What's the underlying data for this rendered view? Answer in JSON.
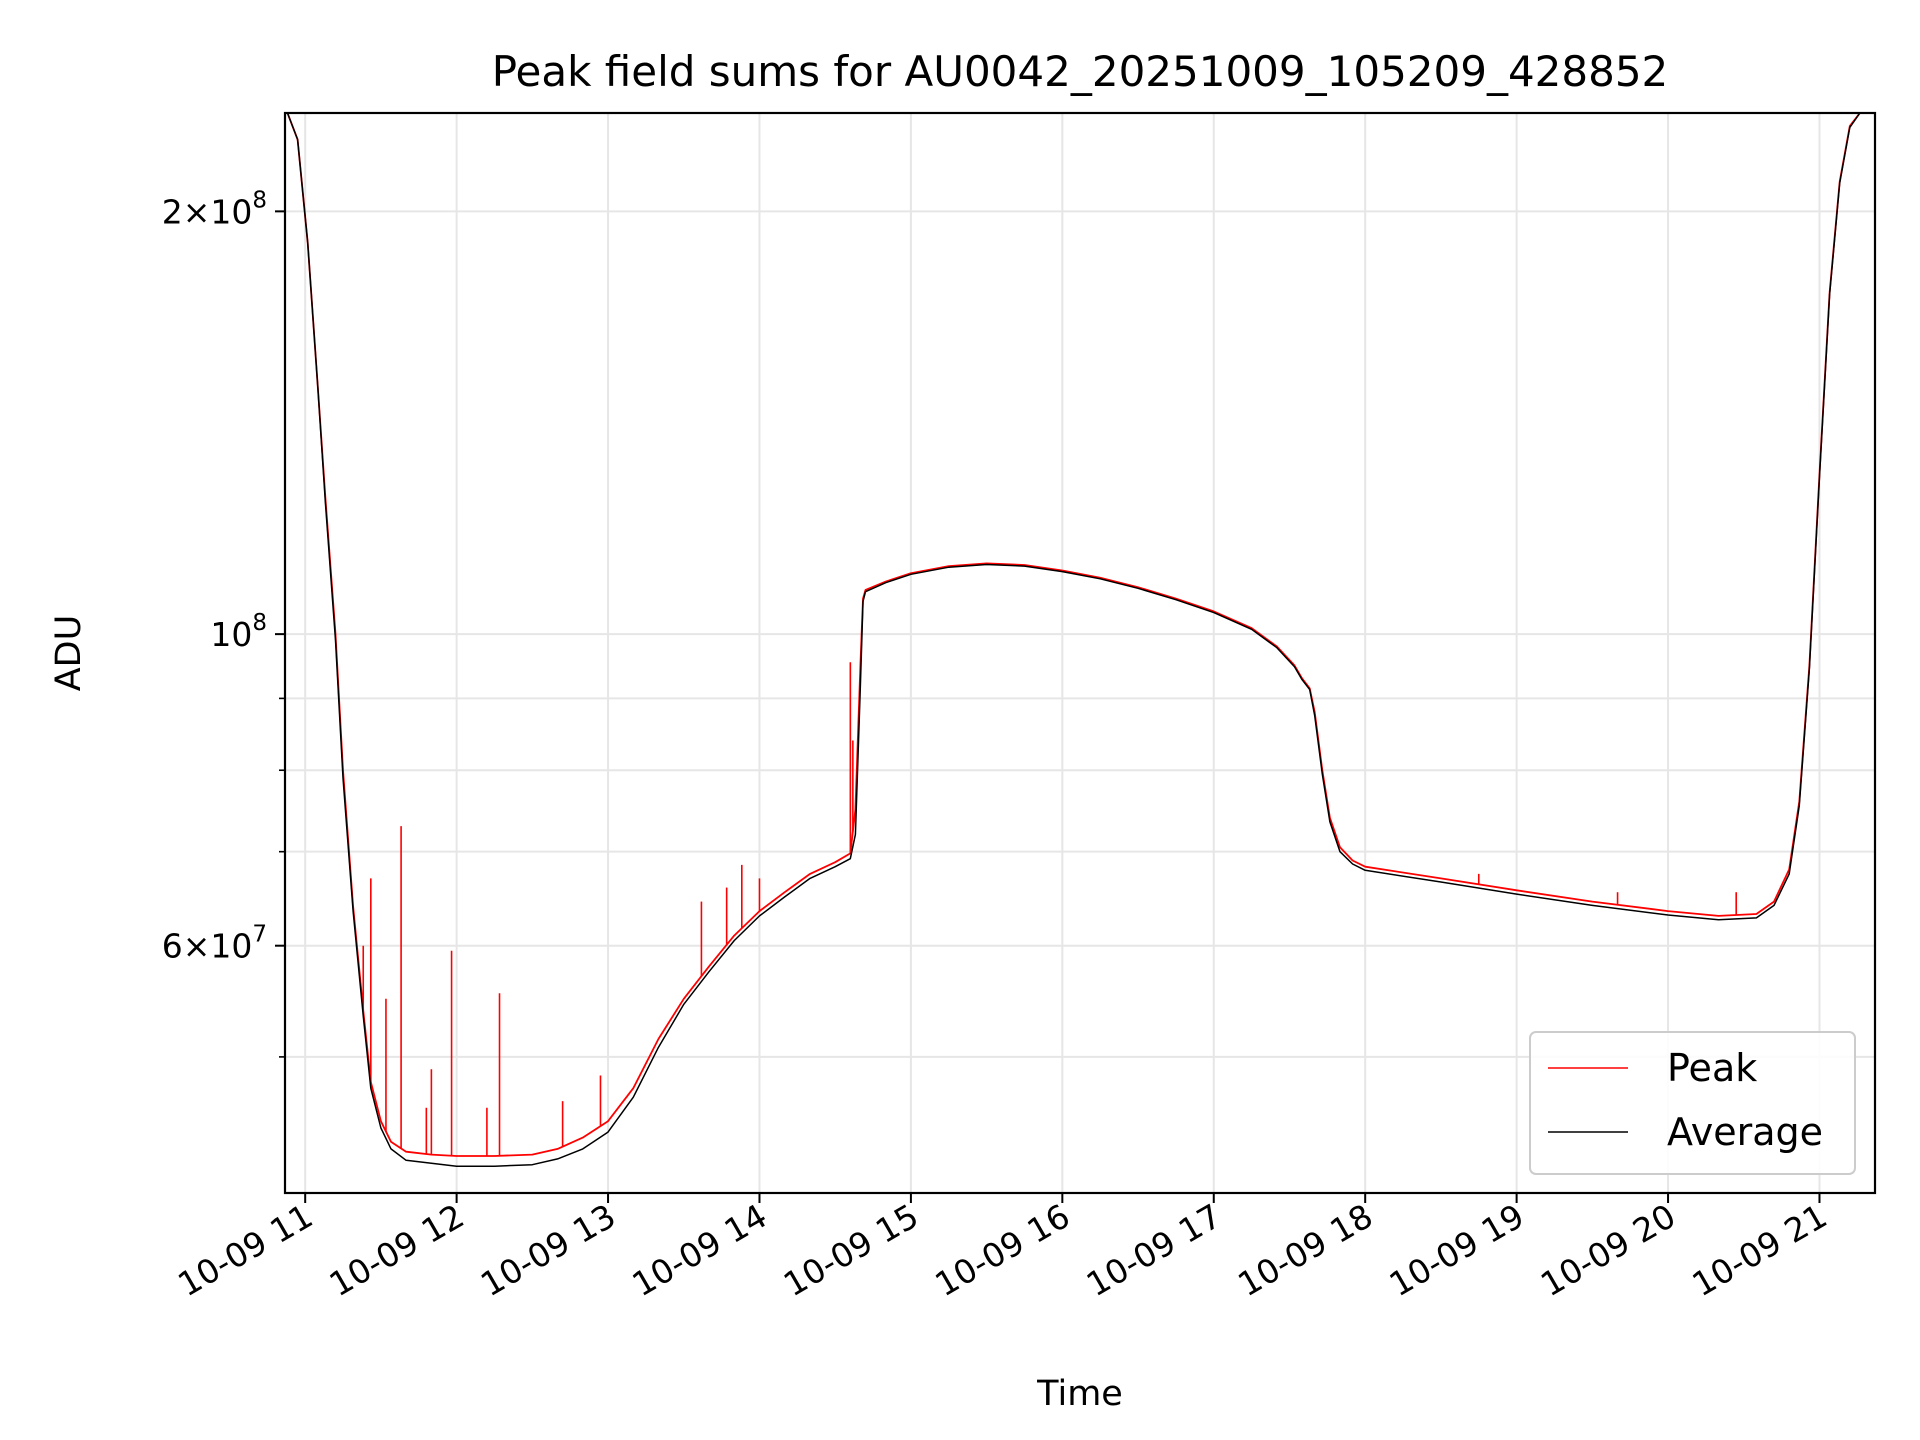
{
  "chart_data": {
    "type": "line",
    "title": "Peak field sums for AU0042_20251009_105209_428852",
    "xlabel": "Time",
    "ylabel": "ADU",
    "yscale": "log",
    "xlim": [
      "2025-10-09 10:52",
      "2025-10-09 21:22"
    ],
    "ylim": [
      40000000,
      235000000
    ],
    "grid": true,
    "legend_position": "lower-right",
    "x_ticks": [
      {
        "value": "2025-10-09 11:00",
        "label": "10-09 11"
      },
      {
        "value": "2025-10-09 12:00",
        "label": "10-09 12"
      },
      {
        "value": "2025-10-09 13:00",
        "label": "10-09 13"
      },
      {
        "value": "2025-10-09 14:00",
        "label": "10-09 14"
      },
      {
        "value": "2025-10-09 15:00",
        "label": "10-09 15"
      },
      {
        "value": "2025-10-09 16:00",
        "label": "10-09 16"
      },
      {
        "value": "2025-10-09 17:00",
        "label": "10-09 17"
      },
      {
        "value": "2025-10-09 18:00",
        "label": "10-09 18"
      },
      {
        "value": "2025-10-09 19:00",
        "label": "10-09 19"
      },
      {
        "value": "2025-10-09 20:00",
        "label": "10-09 20"
      },
      {
        "value": "2025-10-09 21:00",
        "label": "10-09 21"
      }
    ],
    "y_major_ticks": [
      {
        "value": 100000000,
        "base": "10",
        "exp": "8",
        "mantissa": ""
      },
      {
        "value": 200000000,
        "base": "10",
        "exp": "8",
        "mantissa": "2×"
      },
      {
        "value": 60000000,
        "base": "10",
        "exp": "7",
        "mantissa": "6×"
      }
    ],
    "y_minor_ticks": [
      50000000,
      70000000,
      80000000,
      90000000
    ],
    "series": [
      {
        "name": "Peak",
        "color": "#ff0000",
        "points": [
          [
            "2025-10-09 10:53",
            235000000
          ],
          [
            "2025-10-09 10:57",
            225000000
          ],
          [
            "2025-10-09 11:01",
            190000000
          ],
          [
            "2025-10-09 11:05",
            150000000
          ],
          [
            "2025-10-09 11:08",
            125000000
          ],
          [
            "2025-10-09 11:12",
            100000000
          ],
          [
            "2025-10-09 11:15",
            80000000
          ],
          [
            "2025-10-09 11:19",
            64000000
          ],
          [
            "2025-10-09 11:23",
            54000000
          ],
          [
            "2025-10-09 11:26",
            48000000
          ],
          [
            "2025-10-09 11:30",
            45000000
          ],
          [
            "2025-10-09 11:34",
            43500000
          ],
          [
            "2025-10-09 11:40",
            42800000
          ],
          [
            "2025-10-09 11:50",
            42600000
          ],
          [
            "2025-10-09 12:00",
            42500000
          ],
          [
            "2025-10-09 12:15",
            42500000
          ],
          [
            "2025-10-09 12:30",
            42600000
          ],
          [
            "2025-10-09 12:40",
            43000000
          ],
          [
            "2025-10-09 12:50",
            43800000
          ],
          [
            "2025-10-09 13:00",
            45000000
          ],
          [
            "2025-10-09 13:10",
            47500000
          ],
          [
            "2025-10-09 13:20",
            51500000
          ],
          [
            "2025-10-09 13:30",
            55000000
          ],
          [
            "2025-10-09 13:40",
            58000000
          ],
          [
            "2025-10-09 13:50",
            61000000
          ],
          [
            "2025-10-09 14:00",
            63500000
          ],
          [
            "2025-10-09 14:10",
            65500000
          ],
          [
            "2025-10-09 14:20",
            67500000
          ],
          [
            "2025-10-09 14:30",
            68800000
          ],
          [
            "2025-10-09 14:36",
            69800000
          ],
          [
            "2025-10-09 14:38",
            75000000
          ],
          [
            "2025-10-09 14:40",
            95000000
          ],
          [
            "2025-10-09 14:41",
            106000000
          ],
          [
            "2025-10-09 14:42",
            107500000
          ],
          [
            "2025-10-09 14:50",
            109000000
          ],
          [
            "2025-10-09 15:00",
            110500000
          ],
          [
            "2025-10-09 15:15",
            111800000
          ],
          [
            "2025-10-09 15:30",
            112300000
          ],
          [
            "2025-10-09 15:45",
            112000000
          ],
          [
            "2025-10-09 16:00",
            111000000
          ],
          [
            "2025-10-09 16:15",
            109700000
          ],
          [
            "2025-10-09 16:30",
            108000000
          ],
          [
            "2025-10-09 16:45",
            106000000
          ],
          [
            "2025-10-09 17:00",
            103800000
          ],
          [
            "2025-10-09 17:15",
            101000000
          ],
          [
            "2025-10-09 17:25",
            98000000
          ],
          [
            "2025-10-09 17:32",
            95000000
          ],
          [
            "2025-10-09 17:35",
            93000000
          ],
          [
            "2025-10-09 17:38",
            91500000
          ],
          [
            "2025-10-09 17:40",
            88000000
          ],
          [
            "2025-10-09 17:43",
            80000000
          ],
          [
            "2025-10-09 17:46",
            74000000
          ],
          [
            "2025-10-09 17:50",
            70500000
          ],
          [
            "2025-10-09 17:55",
            69000000
          ],
          [
            "2025-10-09 18:00",
            68300000
          ],
          [
            "2025-10-09 18:30",
            67000000
          ],
          [
            "2025-10-09 19:00",
            65700000
          ],
          [
            "2025-10-09 19:30",
            64500000
          ],
          [
            "2025-10-09 20:00",
            63500000
          ],
          [
            "2025-10-09 20:20",
            63000000
          ],
          [
            "2025-10-09 20:35",
            63200000
          ],
          [
            "2025-10-09 20:42",
            64500000
          ],
          [
            "2025-10-09 20:48",
            68000000
          ],
          [
            "2025-10-09 20:52",
            76000000
          ],
          [
            "2025-10-09 20:56",
            95000000
          ],
          [
            "2025-10-09 21:00",
            130000000
          ],
          [
            "2025-10-09 21:04",
            175000000
          ],
          [
            "2025-10-09 21:08",
            210000000
          ],
          [
            "2025-10-09 21:12",
            230000000
          ],
          [
            "2025-10-09 21:16",
            235000000
          ]
        ],
        "spikes": [
          [
            "2025-10-09 11:23",
            60000000
          ],
          [
            "2025-10-09 11:26",
            67000000
          ],
          [
            "2025-10-09 11:32",
            55000000
          ],
          [
            "2025-10-09 11:38",
            73000000
          ],
          [
            "2025-10-09 11:48",
            46000000
          ],
          [
            "2025-10-09 11:50",
            49000000
          ],
          [
            "2025-10-09 11:58",
            59500000
          ],
          [
            "2025-10-09 12:12",
            46000000
          ],
          [
            "2025-10-09 12:17",
            55500000
          ],
          [
            "2025-10-09 12:42",
            46500000
          ],
          [
            "2025-10-09 12:57",
            48500000
          ],
          [
            "2025-10-09 13:37",
            64500000
          ],
          [
            "2025-10-09 13:47",
            66000000
          ],
          [
            "2025-10-09 13:53",
            68500000
          ],
          [
            "2025-10-09 14:00",
            67000000
          ],
          [
            "2025-10-09 14:36",
            95500000
          ],
          [
            "2025-10-09 14:37",
            84000000
          ],
          [
            "2025-10-09 18:45",
            67500000
          ],
          [
            "2025-10-09 19:40",
            65500000
          ],
          [
            "2025-10-09 20:27",
            65500000
          ]
        ]
      },
      {
        "name": "Average",
        "color": "#000000",
        "points": [
          [
            "2025-10-09 10:53",
            235000000
          ],
          [
            "2025-10-09 10:57",
            225000000
          ],
          [
            "2025-10-09 11:01",
            190000000
          ],
          [
            "2025-10-09 11:05",
            150000000
          ],
          [
            "2025-10-09 11:08",
            124000000
          ],
          [
            "2025-10-09 11:12",
            99000000
          ],
          [
            "2025-10-09 11:15",
            79000000
          ],
          [
            "2025-10-09 11:19",
            63500000
          ],
          [
            "2025-10-09 11:23",
            53500000
          ],
          [
            "2025-10-09 11:26",
            47500000
          ],
          [
            "2025-10-09 11:30",
            44500000
          ],
          [
            "2025-10-09 11:34",
            43000000
          ],
          [
            "2025-10-09 11:40",
            42200000
          ],
          [
            "2025-10-09 11:50",
            42000000
          ],
          [
            "2025-10-09 12:00",
            41800000
          ],
          [
            "2025-10-09 12:15",
            41800000
          ],
          [
            "2025-10-09 12:30",
            41900000
          ],
          [
            "2025-10-09 12:40",
            42300000
          ],
          [
            "2025-10-09 12:50",
            43000000
          ],
          [
            "2025-10-09 13:00",
            44200000
          ],
          [
            "2025-10-09 13:10",
            46800000
          ],
          [
            "2025-10-09 13:20",
            50800000
          ],
          [
            "2025-10-09 13:30",
            54500000
          ],
          [
            "2025-10-09 13:40",
            57500000
          ],
          [
            "2025-10-09 13:50",
            60500000
          ],
          [
            "2025-10-09 14:00",
            63000000
          ],
          [
            "2025-10-09 14:10",
            65000000
          ],
          [
            "2025-10-09 14:20",
            67000000
          ],
          [
            "2025-10-09 14:30",
            68300000
          ],
          [
            "2025-10-09 14:36",
            69200000
          ],
          [
            "2025-10-09 14:38",
            72000000
          ],
          [
            "2025-10-09 14:40",
            92000000
          ],
          [
            "2025-10-09 14:41",
            105500000
          ],
          [
            "2025-10-09 14:42",
            107200000
          ],
          [
            "2025-10-09 14:50",
            108800000
          ],
          [
            "2025-10-09 15:00",
            110300000
          ],
          [
            "2025-10-09 15:15",
            111600000
          ],
          [
            "2025-10-09 15:30",
            112100000
          ],
          [
            "2025-10-09 15:45",
            111800000
          ],
          [
            "2025-10-09 16:00",
            110800000
          ],
          [
            "2025-10-09 16:15",
            109500000
          ],
          [
            "2025-10-09 16:30",
            107800000
          ],
          [
            "2025-10-09 16:45",
            105800000
          ],
          [
            "2025-10-09 17:00",
            103600000
          ],
          [
            "2025-10-09 17:15",
            100800000
          ],
          [
            "2025-10-09 17:25",
            97800000
          ],
          [
            "2025-10-09 17:32",
            94800000
          ],
          [
            "2025-10-09 17:35",
            92800000
          ],
          [
            "2025-10-09 17:38",
            91300000
          ],
          [
            "2025-10-09 17:40",
            87500000
          ],
          [
            "2025-10-09 17:43",
            79500000
          ],
          [
            "2025-10-09 17:46",
            73500000
          ],
          [
            "2025-10-09 17:50",
            70000000
          ],
          [
            "2025-10-09 17:55",
            68600000
          ],
          [
            "2025-10-09 18:00",
            67900000
          ],
          [
            "2025-10-09 18:30",
            66600000
          ],
          [
            "2025-10-09 19:00",
            65300000
          ],
          [
            "2025-10-09 19:30",
            64100000
          ],
          [
            "2025-10-09 20:00",
            63100000
          ],
          [
            "2025-10-09 20:20",
            62600000
          ],
          [
            "2025-10-09 20:35",
            62800000
          ],
          [
            "2025-10-09 20:42",
            64100000
          ],
          [
            "2025-10-09 20:48",
            67500000
          ],
          [
            "2025-10-09 20:52",
            75500000
          ],
          [
            "2025-10-09 20:56",
            94500000
          ],
          [
            "2025-10-09 21:00",
            129500000
          ],
          [
            "2025-10-09 21:04",
            174500000
          ],
          [
            "2025-10-09 21:08",
            209500000
          ],
          [
            "2025-10-09 21:12",
            229500000
          ],
          [
            "2025-10-09 21:16",
            235000000
          ]
        ]
      }
    ]
  }
}
